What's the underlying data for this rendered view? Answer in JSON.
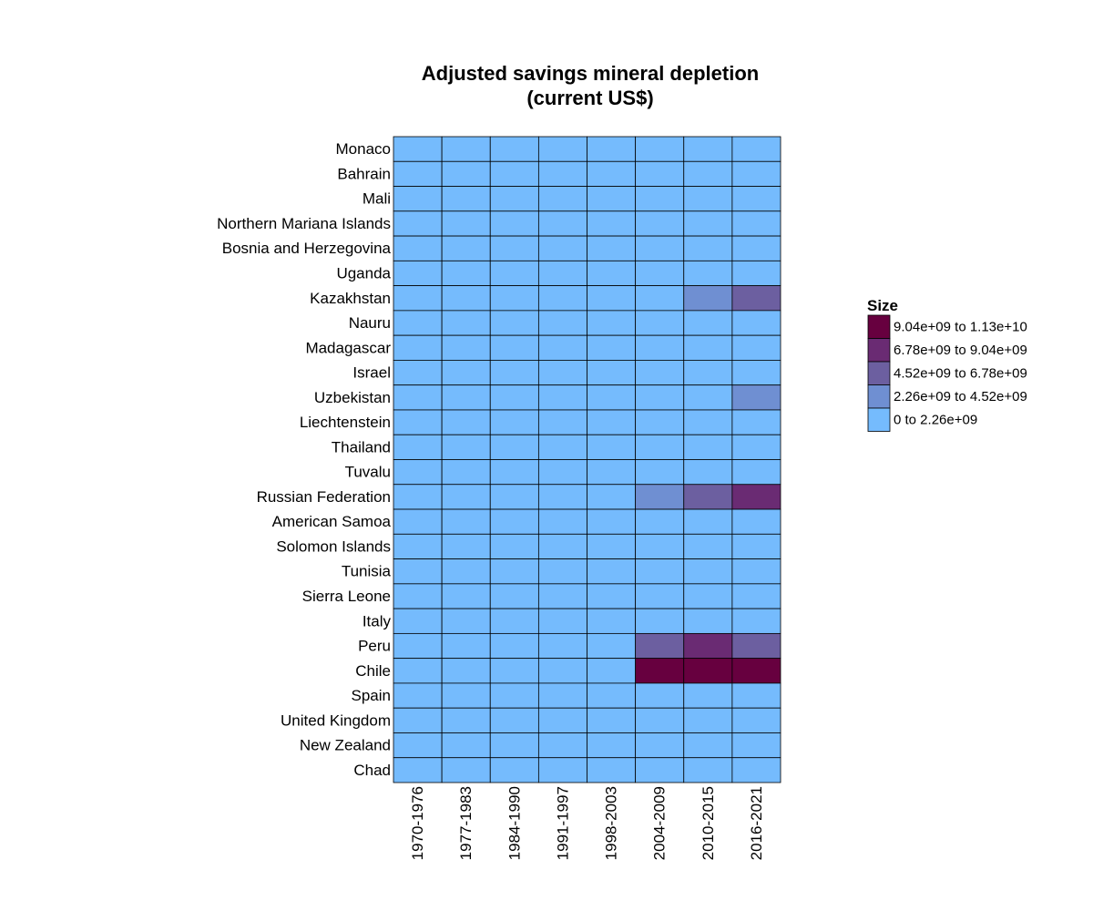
{
  "chart_data": {
    "type": "heatmap",
    "title_lines": [
      "Adjusted savings mineral depletion",
      "(current US$)"
    ],
    "x_categories": [
      "1970-1976",
      "1977-1983",
      "1984-1990",
      "1991-1997",
      "1998-2003",
      "2004-2009",
      "2010-2015",
      "2016-2021"
    ],
    "y_categories": [
      "Monaco",
      "Bahrain",
      "Mali",
      "Northern Mariana Islands",
      "Bosnia and Herzegovina",
      "Uganda",
      "Kazakhstan",
      "Nauru",
      "Madagascar",
      "Israel",
      "Uzbekistan",
      "Liechtenstein",
      "Thailand",
      "Tuvalu",
      "Russian Federation",
      "American Samoa",
      "Solomon Islands",
      "Tunisia",
      "Sierra Leone",
      "Italy",
      "Peru",
      "Chile",
      "Spain",
      "United Kingdom",
      "New Zealand",
      "Chad"
    ],
    "bin_index_matrix": [
      [
        0,
        0,
        0,
        0,
        0,
        0,
        0,
        0
      ],
      [
        0,
        0,
        0,
        0,
        0,
        0,
        0,
        0
      ],
      [
        0,
        0,
        0,
        0,
        0,
        0,
        0,
        0
      ],
      [
        0,
        0,
        0,
        0,
        0,
        0,
        0,
        0
      ],
      [
        0,
        0,
        0,
        0,
        0,
        0,
        0,
        0
      ],
      [
        0,
        0,
        0,
        0,
        0,
        0,
        0,
        0
      ],
      [
        0,
        0,
        0,
        0,
        0,
        0,
        1,
        2
      ],
      [
        0,
        0,
        0,
        0,
        0,
        0,
        0,
        0
      ],
      [
        0,
        0,
        0,
        0,
        0,
        0,
        0,
        0
      ],
      [
        0,
        0,
        0,
        0,
        0,
        0,
        0,
        0
      ],
      [
        0,
        0,
        0,
        0,
        0,
        0,
        0,
        1
      ],
      [
        0,
        0,
        0,
        0,
        0,
        0,
        0,
        0
      ],
      [
        0,
        0,
        0,
        0,
        0,
        0,
        0,
        0
      ],
      [
        0,
        0,
        0,
        0,
        0,
        0,
        0,
        0
      ],
      [
        0,
        0,
        0,
        0,
        0,
        1,
        2,
        3
      ],
      [
        0,
        0,
        0,
        0,
        0,
        0,
        0,
        0
      ],
      [
        0,
        0,
        0,
        0,
        0,
        0,
        0,
        0
      ],
      [
        0,
        0,
        0,
        0,
        0,
        0,
        0,
        0
      ],
      [
        0,
        0,
        0,
        0,
        0,
        0,
        0,
        0
      ],
      [
        0,
        0,
        0,
        0,
        0,
        0,
        0,
        0
      ],
      [
        0,
        0,
        0,
        0,
        0,
        2,
        3,
        2
      ],
      [
        0,
        0,
        0,
        0,
        0,
        4,
        4,
        4
      ],
      [
        0,
        0,
        0,
        0,
        0,
        0,
        0,
        0
      ],
      [
        0,
        0,
        0,
        0,
        0,
        0,
        0,
        0
      ],
      [
        0,
        0,
        0,
        0,
        0,
        0,
        0,
        0
      ],
      [
        0,
        0,
        0,
        0,
        0,
        0,
        0,
        0
      ]
    ],
    "legend": {
      "title": "Size",
      "bins": [
        {
          "label": "9.04e+09 to 1.13e+10",
          "color": "#67003f"
        },
        {
          "label": "6.78e+09 to 9.04e+09",
          "color": "#6a2b73"
        },
        {
          "label": "4.52e+09 to 6.78e+09",
          "color": "#6c5fa0"
        },
        {
          "label": "2.26e+09 to 4.52e+09",
          "color": "#6f8fd2"
        },
        {
          "label": "0 to 2.26e+09",
          "color": "#75bbfd"
        }
      ]
    },
    "bin_colors_low_to_high": [
      "#75bbfd",
      "#6f8fd2",
      "#6c5fa0",
      "#6a2b73",
      "#67003f"
    ],
    "grid_line_color": "#000000",
    "legend_placement": "right"
  }
}
